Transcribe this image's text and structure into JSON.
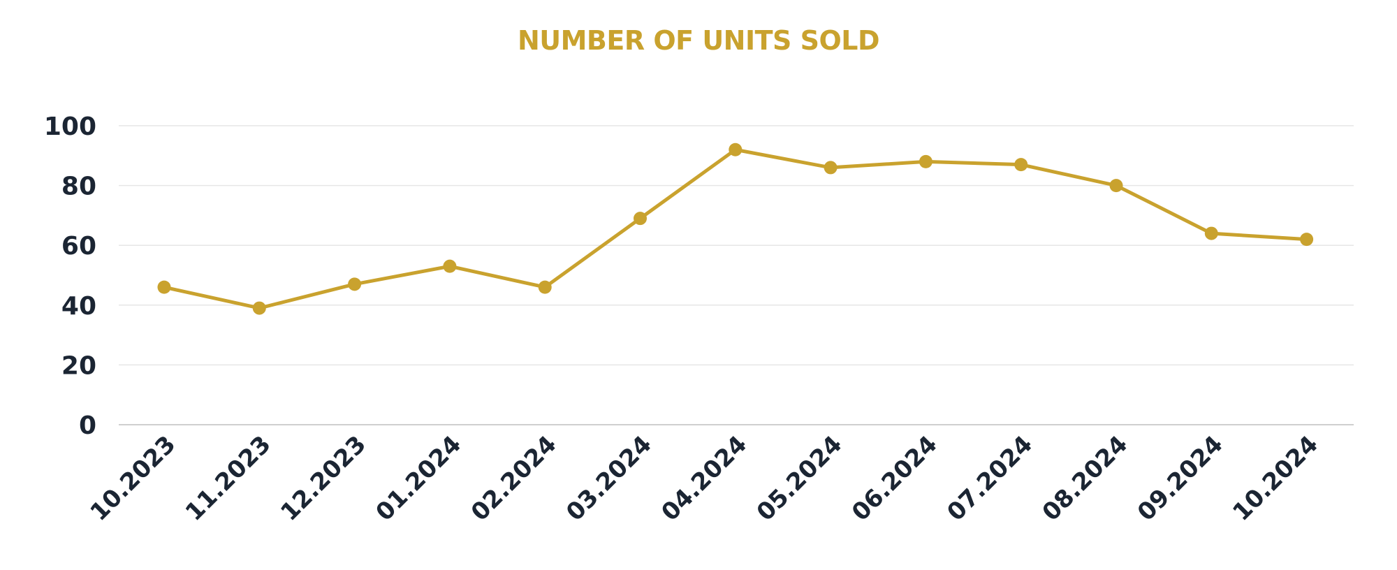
{
  "chart_data": {
    "type": "line",
    "title": "NUMBER OF UNITS SOLD",
    "xlabel": "",
    "ylabel": "",
    "categories": [
      "10.2023",
      "11.2023",
      "12.2023",
      "01.2024",
      "02.2024",
      "03.2024",
      "04.2024",
      "05.2024",
      "06.2024",
      "07.2024",
      "08.2024",
      "09.2024",
      "10.2024"
    ],
    "series": [
      {
        "values": [
          46,
          39,
          47,
          53,
          46,
          69,
          92,
          86,
          88,
          87,
          80,
          64,
          62
        ]
      }
    ],
    "ylim": [
      0,
      100
    ],
    "yticks": [
      0,
      20,
      40,
      60,
      80,
      100
    ],
    "grid": true,
    "legend": "none"
  },
  "colors": {
    "series": "#C9A22E",
    "title": "#C9A22E",
    "tick_text": "#1B2533",
    "grid": "#E6E6E6",
    "axis": "#CFCFCF"
  }
}
